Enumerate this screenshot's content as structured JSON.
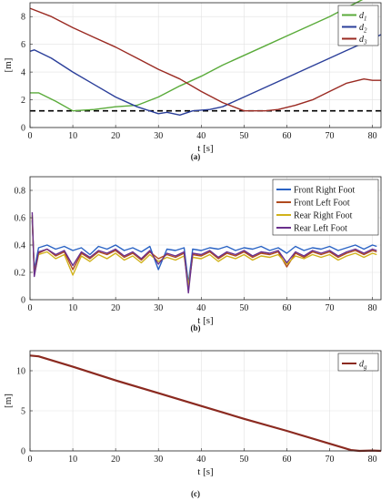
{
  "figure": {
    "panels": [
      {
        "caption": "(a)"
      },
      {
        "caption": "(b)"
      },
      {
        "caption": "(c)"
      }
    ]
  },
  "chart_data": [
    {
      "type": "line",
      "panel": "a",
      "xlabel": "t [s]",
      "ylabel": "[m]",
      "xlim": [
        0,
        82
      ],
      "ylim": [
        0,
        9
      ],
      "xticks": [
        0,
        10,
        20,
        30,
        40,
        50,
        60,
        70,
        80
      ],
      "yticks": [
        0,
        2,
        4,
        6,
        8
      ],
      "grid": true,
      "legend": "top-right",
      "threshold": {
        "y": 1.2,
        "style": "dashed",
        "color": "#000000"
      },
      "series": [
        {
          "name": "d_1",
          "label_main": "d",
          "label_sub": "1",
          "color": "#5aab3a",
          "x": [
            0,
            2,
            6,
            10,
            15,
            20,
            25,
            30,
            35,
            40,
            45,
            50,
            55,
            60,
            65,
            70,
            75,
            80,
            82
          ],
          "y": [
            2.5,
            2.5,
            1.9,
            1.2,
            1.3,
            1.5,
            1.6,
            2.2,
            3.0,
            3.7,
            4.5,
            5.2,
            5.9,
            6.6,
            7.3,
            8.0,
            8.8,
            9.6,
            9.9
          ]
        },
        {
          "name": "d_2",
          "label_main": "d",
          "label_sub": "2",
          "color": "#2b3f9a",
          "x": [
            0,
            1,
            5,
            10,
            15,
            20,
            25,
            30,
            32,
            35,
            38,
            42,
            45,
            50,
            55,
            60,
            65,
            70,
            75,
            80,
            82
          ],
          "y": [
            5.5,
            5.6,
            5.0,
            4.0,
            3.1,
            2.2,
            1.5,
            1.0,
            1.1,
            0.9,
            1.2,
            1.3,
            1.5,
            2.2,
            2.9,
            3.6,
            4.3,
            5.0,
            5.7,
            6.4,
            6.7
          ]
        },
        {
          "name": "d_3",
          "label_main": "d",
          "label_sub": "3",
          "color": "#9a2a22",
          "x": [
            0,
            5,
            10,
            15,
            20,
            25,
            30,
            35,
            40,
            45,
            50,
            55,
            58,
            62,
            66,
            70,
            74,
            78,
            80,
            82
          ],
          "y": [
            8.6,
            8.0,
            7.2,
            6.5,
            5.8,
            5.0,
            4.2,
            3.5,
            2.6,
            1.8,
            1.2,
            1.2,
            1.3,
            1.6,
            2.0,
            2.6,
            3.2,
            3.5,
            3.4,
            3.4
          ]
        }
      ]
    },
    {
      "type": "line",
      "panel": "b",
      "xlabel": "t [s]",
      "ylabel": "",
      "xlim": [
        0,
        82
      ],
      "ylim": [
        0,
        0.9
      ],
      "xticks": [
        0,
        10,
        20,
        30,
        40,
        50,
        60,
        70,
        80
      ],
      "yticks": [
        0,
        0.2,
        0.4,
        0.6,
        0.8
      ],
      "grid": true,
      "legend": "top-right",
      "series": [
        {
          "name": "Front Right Foot",
          "color": "#2a63c4",
          "x": [
            0.5,
            1,
            2,
            4,
            6,
            8,
            10,
            12,
            14,
            16,
            18,
            20,
            22,
            24,
            26,
            28,
            30,
            32,
            34,
            36,
            37,
            38,
            40,
            42,
            44,
            46,
            48,
            50,
            52,
            54,
            56,
            58,
            60,
            62,
            64,
            66,
            68,
            70,
            72,
            74,
            76,
            78,
            80,
            81
          ],
          "y": [
            0.58,
            0.22,
            0.38,
            0.4,
            0.37,
            0.39,
            0.36,
            0.38,
            0.33,
            0.39,
            0.37,
            0.4,
            0.36,
            0.38,
            0.35,
            0.39,
            0.22,
            0.37,
            0.36,
            0.38,
            0.12,
            0.37,
            0.36,
            0.38,
            0.37,
            0.39,
            0.36,
            0.38,
            0.37,
            0.39,
            0.36,
            0.38,
            0.34,
            0.39,
            0.36,
            0.38,
            0.37,
            0.39,
            0.36,
            0.38,
            0.4,
            0.37,
            0.4,
            0.39
          ]
        },
        {
          "name": "Front Left Foot",
          "color": "#b04a1e",
          "x": [
            0.5,
            1,
            2,
            4,
            6,
            8,
            10,
            12,
            14,
            16,
            18,
            20,
            22,
            24,
            26,
            28,
            30,
            32,
            34,
            36,
            37,
            38,
            40,
            42,
            44,
            46,
            48,
            50,
            52,
            54,
            56,
            58,
            60,
            62,
            64,
            66,
            68,
            70,
            72,
            74,
            76,
            78,
            80,
            81
          ],
          "y": [
            0.6,
            0.2,
            0.34,
            0.37,
            0.32,
            0.35,
            0.22,
            0.34,
            0.3,
            0.35,
            0.33,
            0.36,
            0.31,
            0.34,
            0.29,
            0.35,
            0.3,
            0.33,
            0.31,
            0.34,
            0.08,
            0.33,
            0.32,
            0.35,
            0.3,
            0.34,
            0.32,
            0.35,
            0.31,
            0.34,
            0.33,
            0.35,
            0.24,
            0.34,
            0.31,
            0.35,
            0.33,
            0.35,
            0.31,
            0.34,
            0.36,
            0.33,
            0.36,
            0.35
          ]
        },
        {
          "name": "Rear Right Foot",
          "color": "#d1b21a",
          "x": [
            0.5,
            1,
            2,
            4,
            6,
            8,
            10,
            12,
            14,
            16,
            18,
            20,
            22,
            24,
            26,
            28,
            30,
            32,
            34,
            36,
            37,
            38,
            40,
            42,
            44,
            46,
            48,
            50,
            52,
            54,
            56,
            58,
            60,
            62,
            64,
            66,
            68,
            70,
            72,
            74,
            76,
            78,
            80,
            81
          ],
          "y": [
            0.62,
            0.18,
            0.33,
            0.35,
            0.3,
            0.33,
            0.18,
            0.32,
            0.28,
            0.33,
            0.3,
            0.34,
            0.29,
            0.32,
            0.27,
            0.33,
            0.28,
            0.31,
            0.29,
            0.32,
            0.1,
            0.31,
            0.3,
            0.33,
            0.28,
            0.32,
            0.3,
            0.33,
            0.29,
            0.32,
            0.31,
            0.33,
            0.26,
            0.32,
            0.3,
            0.33,
            0.31,
            0.33,
            0.29,
            0.32,
            0.34,
            0.31,
            0.34,
            0.33
          ]
        },
        {
          "name": "Rear Left Foot",
          "color": "#6a2f8c",
          "x": [
            0.5,
            1,
            2,
            4,
            6,
            8,
            10,
            12,
            14,
            16,
            18,
            20,
            22,
            24,
            26,
            28,
            30,
            32,
            34,
            36,
            37,
            38,
            40,
            42,
            44,
            46,
            48,
            50,
            52,
            54,
            56,
            58,
            60,
            62,
            64,
            66,
            68,
            70,
            72,
            74,
            76,
            78,
            80,
            81
          ],
          "y": [
            0.64,
            0.17,
            0.35,
            0.37,
            0.33,
            0.36,
            0.25,
            0.35,
            0.31,
            0.36,
            0.34,
            0.37,
            0.32,
            0.35,
            0.3,
            0.36,
            0.26,
            0.34,
            0.32,
            0.35,
            0.05,
            0.34,
            0.33,
            0.36,
            0.31,
            0.35,
            0.33,
            0.36,
            0.32,
            0.35,
            0.34,
            0.36,
            0.27,
            0.35,
            0.32,
            0.36,
            0.34,
            0.36,
            0.32,
            0.35,
            0.37,
            0.34,
            0.37,
            0.36
          ]
        }
      ]
    },
    {
      "type": "line",
      "panel": "c",
      "xlabel": "t [s]",
      "ylabel": "[m]",
      "xlim": [
        0,
        82
      ],
      "ylim": [
        0,
        12.5
      ],
      "xticks": [
        0,
        10,
        20,
        30,
        40,
        50,
        60,
        70,
        80
      ],
      "yticks": [
        0,
        5,
        10
      ],
      "grid": true,
      "legend": "top-right",
      "series": [
        {
          "name": "d_g",
          "label_main": "d",
          "label_sub": "g",
          "color": "#8b2a20",
          "x": [
            0,
            2,
            10,
            20,
            30,
            40,
            50,
            60,
            70,
            75,
            77,
            80,
            82
          ],
          "y": [
            11.9,
            11.8,
            10.5,
            8.8,
            7.2,
            5.6,
            4.0,
            2.5,
            0.9,
            0.1,
            0.0,
            0.05,
            0.0
          ]
        }
      ]
    }
  ]
}
